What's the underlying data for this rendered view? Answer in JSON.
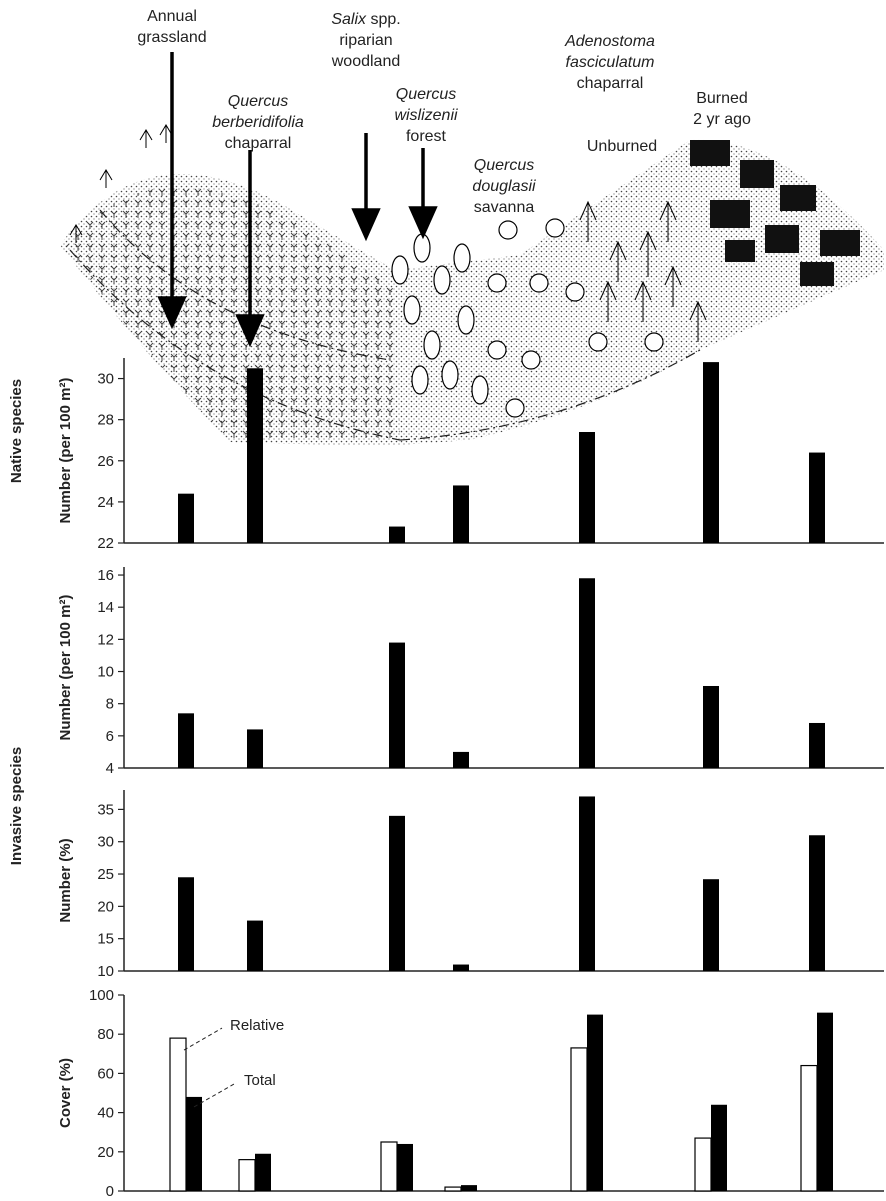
{
  "habitats": [
    {
      "name": "annual-grassland",
      "lines": [
        {
          "text": "Annual",
          "italic": false
        },
        {
          "text": "grassland",
          "italic": false
        }
      ]
    },
    {
      "name": "quercus-berberidifolia-chaparral",
      "lines": [
        {
          "text": "Quercus",
          "italic": true
        },
        {
          "text": "berberidifolia",
          "italic": true
        },
        {
          "text": "chaparral",
          "italic": false
        }
      ]
    },
    {
      "name": "salix-riparian-woodland",
      "lines": [
        {
          "text": "Salix",
          "italic": true,
          "rest": " spp."
        },
        {
          "text": "riparian",
          "italic": false
        },
        {
          "text": "woodland",
          "italic": false
        }
      ]
    },
    {
      "name": "quercus-wislizenii-forest",
      "lines": [
        {
          "text": "Quercus",
          "italic": true
        },
        {
          "text": "wislizenii",
          "italic": true
        },
        {
          "text": "forest",
          "italic": false
        }
      ]
    },
    {
      "name": "quercus-douglasii-savanna",
      "lines": [
        {
          "text": "Quercus",
          "italic": true
        },
        {
          "text": "douglasii",
          "italic": true
        },
        {
          "text": "savanna",
          "italic": false
        }
      ]
    },
    {
      "name": "adenostoma-chaparral",
      "lines": [
        {
          "text": "Adenostoma",
          "italic": true
        },
        {
          "text": "fasciculatum",
          "italic": true
        },
        {
          "text": "chaparral",
          "italic": false
        }
      ]
    },
    {
      "name": "unburned",
      "lines": [
        {
          "text": "Unburned",
          "italic": false
        }
      ]
    },
    {
      "name": "burned",
      "lines": [
        {
          "text": "Burned",
          "italic": false
        },
        {
          "text": "2 yr ago",
          "italic": false
        }
      ]
    }
  ],
  "section_labels": {
    "native": "Native species",
    "invasive": "Invasive species"
  },
  "chart_data": [
    {
      "type": "bar",
      "group": "Native species",
      "ylabel": "Number (per 100 m²)",
      "ylim": [
        22,
        31
      ],
      "yticks": [
        22,
        24,
        26,
        28,
        30
      ],
      "values": [
        24.4,
        30.5,
        22.8,
        24.8,
        27.4,
        30.8,
        26.4
      ]
    },
    {
      "type": "bar",
      "group": "Invasive species",
      "ylabel": "Number (per 100 m²)",
      "ylim": [
        4,
        16.5
      ],
      "yticks": [
        4,
        6,
        8,
        10,
        12,
        14,
        16
      ],
      "values": [
        7.4,
        6.4,
        11.8,
        5.0,
        15.8,
        9.1,
        6.8
      ]
    },
    {
      "type": "bar",
      "group": "Invasive species",
      "ylabel": "Number (%)",
      "ylim": [
        10,
        38
      ],
      "yticks": [
        10,
        15,
        20,
        25,
        30,
        35
      ],
      "values": [
        24.5,
        17.8,
        34.0,
        11.0,
        37.0,
        24.2,
        31.0
      ]
    },
    {
      "type": "bar",
      "group": "Invasive species",
      "ylabel": "Cover (%)",
      "ylim": [
        0,
        100
      ],
      "yticks": [
        0,
        20,
        40,
        60,
        80,
        100
      ],
      "series": [
        {
          "name": "Relative",
          "values": [
            78,
            16,
            25,
            2,
            73,
            27,
            64
          ]
        },
        {
          "name": "Total",
          "values": [
            48,
            19,
            24,
            3,
            90,
            44,
            91
          ]
        }
      ]
    }
  ],
  "colors": {
    "bar": "#000000",
    "relative": "#ffffff",
    "axis": "#222222"
  }
}
